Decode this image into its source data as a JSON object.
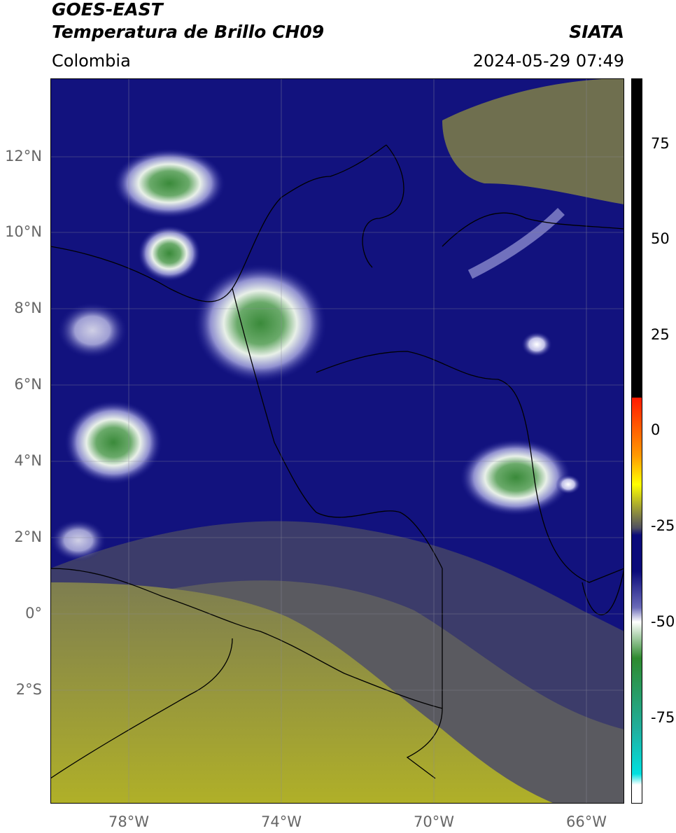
{
  "header": {
    "title_line1": "GOES-EAST",
    "title_line2": "Temperatura de Brillo CH09",
    "organization": "SIATA",
    "region": "Colombia",
    "timestamp": "2024-05-29 07:49"
  },
  "map": {
    "lat_labels": [
      "12°N",
      "10°N",
      "8°N",
      "6°N",
      "4°N",
      "2°N",
      "0°",
      "2°S"
    ],
    "lon_labels": [
      "78°W",
      "74°W",
      "70°W",
      "66°W"
    ]
  },
  "colorbar": {
    "tick_labels": [
      "75",
      "50",
      "25",
      "0",
      "-25",
      "-50",
      "-75"
    ],
    "colors": {
      "black": "#000000",
      "red": "#ff1a00",
      "orange": "#ff9900",
      "yellow": "#ffff00",
      "olive": "#a6a630",
      "gray": "#505060",
      "navy": "#0a0a7a",
      "white": "#ffffff",
      "green": "#2f8a2f",
      "teal": "#20b0a0",
      "cyan": "#00e0e0"
    }
  },
  "chart_data": {
    "type": "heatmap",
    "title": "Temperatura de Brillo CH09",
    "lat_ticks": [
      12,
      10,
      8,
      6,
      4,
      2,
      0,
      -2
    ],
    "lon_ticks": [
      -78,
      -74,
      -70,
      -66
    ],
    "colorbar_ticks": [
      75,
      50,
      25,
      0,
      -25,
      -50,
      -75
    ],
    "colorbar_range": [
      -95,
      90
    ]
  }
}
